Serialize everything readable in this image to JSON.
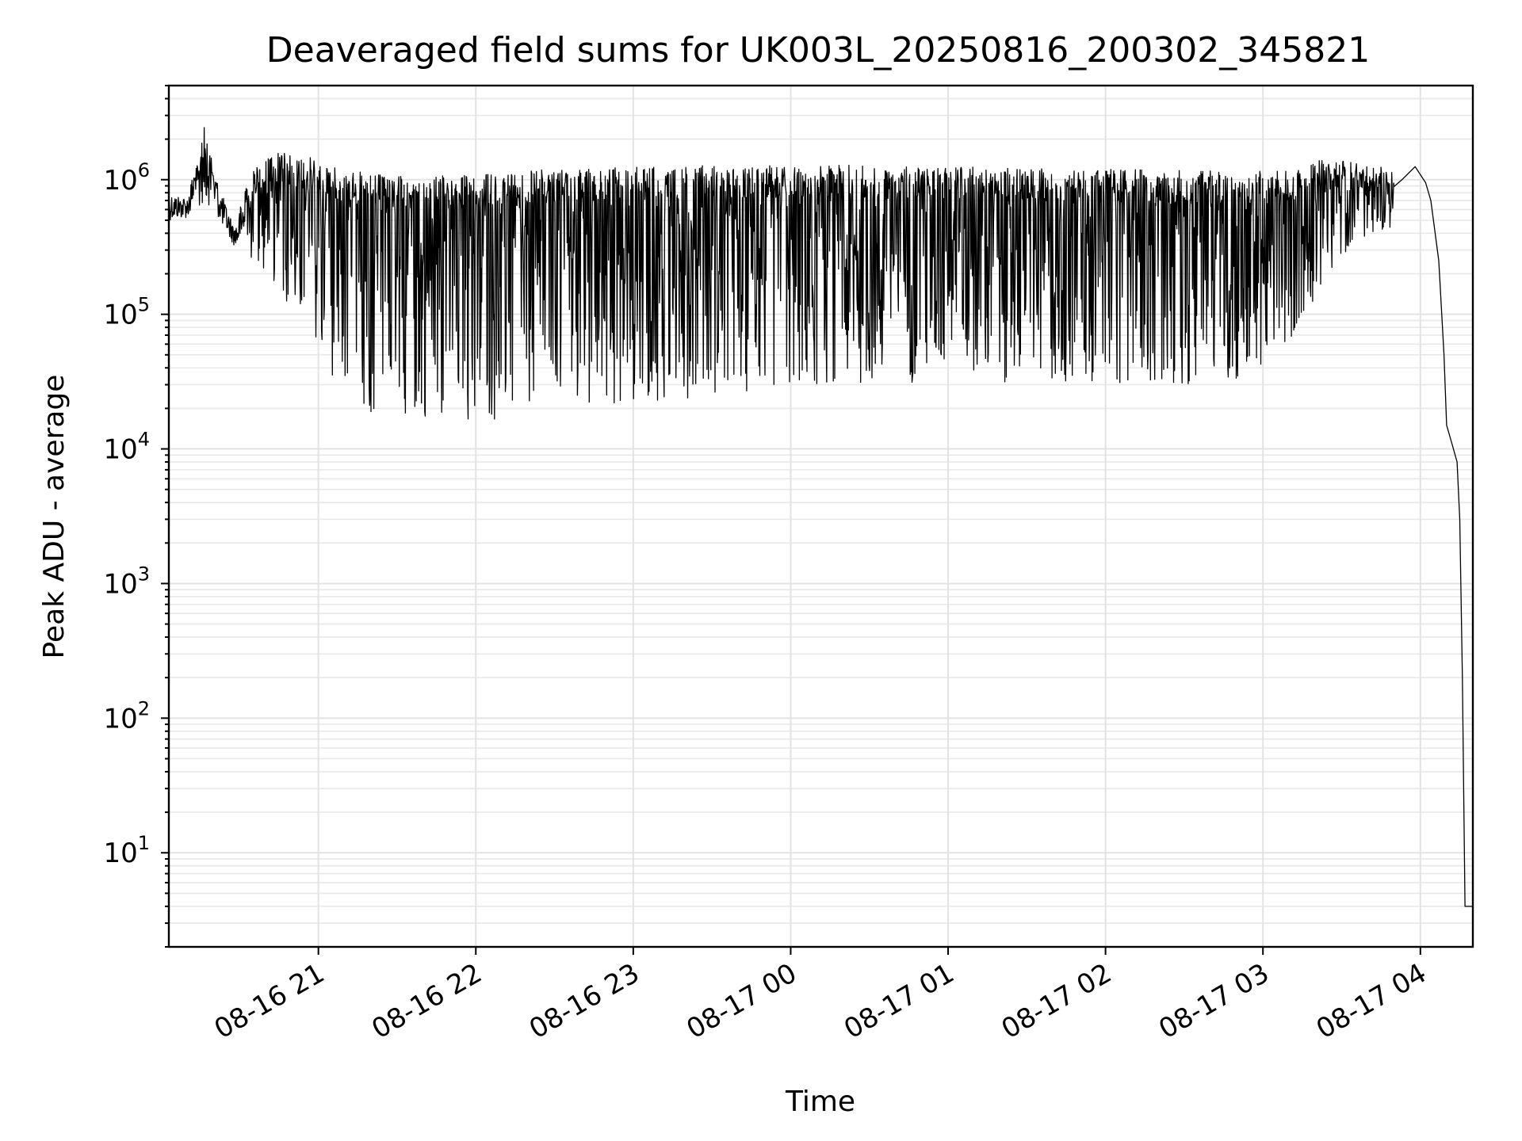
{
  "chart_data": {
    "type": "line",
    "title": "Deaveraged field sums for UK003L_20250816_200302_345821",
    "xlabel": "Time",
    "ylabel": "Peak ADU - average",
    "y_scale": "log",
    "ylim": [
      2,
      5000000
    ],
    "xlim": [
      "2025-08-16 20:03",
      "2025-08-17 04:20"
    ],
    "grid": "both",
    "x_ticks": [
      "08-16 21",
      "08-16 22",
      "08-16 23",
      "08-17 00",
      "08-17 01",
      "08-17 02",
      "08-17 03",
      "08-17 04"
    ],
    "y_ticks": [
      10,
      100,
      1000,
      10000,
      100000,
      1000000
    ],
    "series": [
      {
        "color": "#000000",
        "envelope": [
          {
            "x": "2025-08-16 20:03",
            "low": 500000,
            "high": 800000
          },
          {
            "x": "2025-08-16 20:10",
            "low": 520000,
            "high": 750000
          },
          {
            "x": "2025-08-16 20:17",
            "low": 700000,
            "high": 2700000
          },
          {
            "x": "2025-08-16 20:22",
            "low": 500000,
            "high": 900000
          },
          {
            "x": "2025-08-16 20:28",
            "low": 320000,
            "high": 450000
          },
          {
            "x": "2025-08-16 20:35",
            "low": 250000,
            "high": 1300000
          },
          {
            "x": "2025-08-16 20:45",
            "low": 150000,
            "high": 1600000
          },
          {
            "x": "2025-08-16 20:55",
            "low": 70000,
            "high": 1500000
          },
          {
            "x": "2025-08-16 21:00",
            "low": 50000,
            "high": 1400000
          },
          {
            "x": "2025-08-16 21:05",
            "low": 35000,
            "high": 1300000
          },
          {
            "x": "2025-08-16 21:10",
            "low": 25000,
            "high": 1200000
          },
          {
            "x": "2025-08-16 21:20",
            "low": 18000,
            "high": 1100000
          },
          {
            "x": "2025-08-16 21:40",
            "low": 17000,
            "high": 1050000
          },
          {
            "x": "2025-08-16 22:00",
            "low": 15000,
            "high": 1100000
          },
          {
            "x": "2025-08-16 22:30",
            "low": 18000,
            "high": 1200000
          },
          {
            "x": "2025-08-16 23:00",
            "low": 22000,
            "high": 1250000
          },
          {
            "x": "2025-08-17 00:00",
            "low": 28000,
            "high": 1300000
          },
          {
            "x": "2025-08-17 01:00",
            "low": 32000,
            "high": 1250000
          },
          {
            "x": "2025-08-17 02:00",
            "low": 30000,
            "high": 1200000
          },
          {
            "x": "2025-08-17 02:50",
            "low": 30000,
            "high": 1150000
          },
          {
            "x": "2025-08-17 03:10",
            "low": 60000,
            "high": 1200000
          },
          {
            "x": "2025-08-17 03:25",
            "low": 200000,
            "high": 1500000
          },
          {
            "x": "2025-08-17 03:35",
            "low": 350000,
            "high": 1400000
          },
          {
            "x": "2025-08-17 03:50",
            "low": 450000,
            "high": 1200000
          }
        ],
        "tail": [
          {
            "x": "2025-08-17 03:53",
            "y": 1000000
          },
          {
            "x": "2025-08-17 03:58",
            "y": 1250000
          },
          {
            "x": "2025-08-17 04:02",
            "y": 950000
          },
          {
            "x": "2025-08-17 04:04",
            "y": 700000
          },
          {
            "x": "2025-08-17 04:07",
            "y": 250000
          },
          {
            "x": "2025-08-17 04:09",
            "y": 50000
          },
          {
            "x": "2025-08-17 04:10",
            "y": 15000
          },
          {
            "x": "2025-08-17 04:12",
            "y": 11000
          },
          {
            "x": "2025-08-17 04:14",
            "y": 8000
          },
          {
            "x": "2025-08-17 04:15",
            "y": 3000
          },
          {
            "x": "2025-08-17 04:16",
            "y": 200
          },
          {
            "x": "2025-08-17 04:17",
            "y": 4
          },
          {
            "x": "2025-08-17 04:20",
            "y": 4
          }
        ]
      }
    ]
  }
}
